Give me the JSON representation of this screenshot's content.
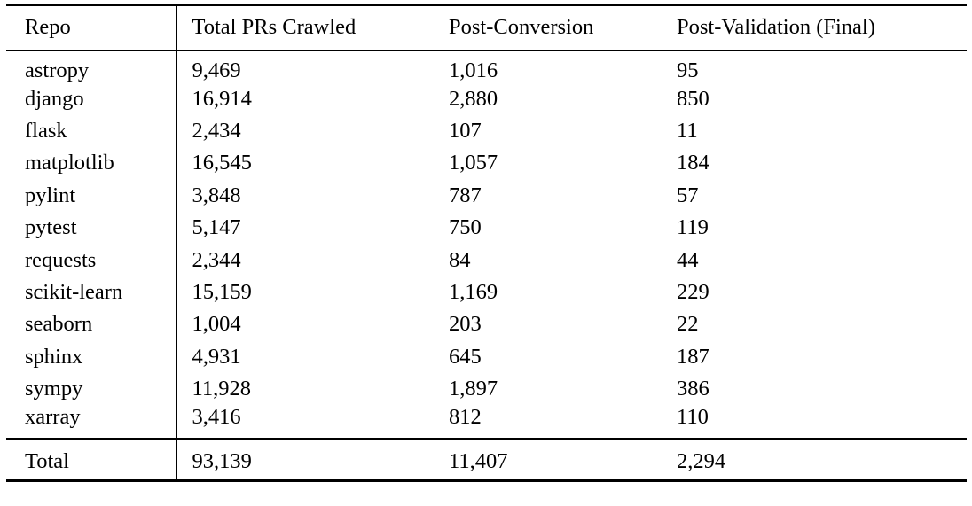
{
  "page": {
    "background_color": "#ffffff",
    "text_color": "#000000",
    "rule_color": "#000000"
  },
  "table": {
    "columns": [
      {
        "label": "Repo"
      },
      {
        "label": "Total PRs Crawled"
      },
      {
        "label": "Post-Conversion"
      },
      {
        "label": "Post-Validation (Final)"
      }
    ],
    "rows": [
      {
        "repo": "astropy",
        "total_prs_crawled": "9,469",
        "post_conversion": "1,016",
        "post_validation_final": "95"
      },
      {
        "repo": "django",
        "total_prs_crawled": "16,914",
        "post_conversion": "2,880",
        "post_validation_final": "850"
      },
      {
        "repo": "flask",
        "total_prs_crawled": "2,434",
        "post_conversion": "107",
        "post_validation_final": "11"
      },
      {
        "repo": "matplotlib",
        "total_prs_crawled": "16,545",
        "post_conversion": "1,057",
        "post_validation_final": "184"
      },
      {
        "repo": "pylint",
        "total_prs_crawled": "3,848",
        "post_conversion": "787",
        "post_validation_final": "57"
      },
      {
        "repo": "pytest",
        "total_prs_crawled": "5,147",
        "post_conversion": "750",
        "post_validation_final": "119"
      },
      {
        "repo": "requests",
        "total_prs_crawled": "2,344",
        "post_conversion": "84",
        "post_validation_final": "44"
      },
      {
        "repo": "scikit-learn",
        "total_prs_crawled": "15,159",
        "post_conversion": "1,169",
        "post_validation_final": "229"
      },
      {
        "repo": "seaborn",
        "total_prs_crawled": "1,004",
        "post_conversion": "203",
        "post_validation_final": "22"
      },
      {
        "repo": "sphinx",
        "total_prs_crawled": "4,931",
        "post_conversion": "645",
        "post_validation_final": "187"
      },
      {
        "repo": "sympy",
        "total_prs_crawled": "11,928",
        "post_conversion": "1,897",
        "post_validation_final": "386"
      },
      {
        "repo": "xarray",
        "total_prs_crawled": "3,416",
        "post_conversion": "812",
        "post_validation_final": "110"
      }
    ],
    "total_row": {
      "repo": "Total",
      "total_prs_crawled": "93,139",
      "post_conversion": "11,407",
      "post_validation_final": "2,294"
    }
  },
  "chart_data": {
    "type": "table",
    "columns": [
      "Repo",
      "Total PRs Crawled",
      "Post-Conversion",
      "Post-Validation (Final)"
    ],
    "rows": [
      [
        "astropy",
        9469,
        1016,
        95
      ],
      [
        "django",
        16914,
        2880,
        850
      ],
      [
        "flask",
        2434,
        107,
        11
      ],
      [
        "matplotlib",
        16545,
        1057,
        184
      ],
      [
        "pylint",
        3848,
        787,
        57
      ],
      [
        "pytest",
        5147,
        750,
        119
      ],
      [
        "requests",
        2344,
        84,
        44
      ],
      [
        "scikit-learn",
        15159,
        1169,
        229
      ],
      [
        "seaborn",
        1004,
        203,
        22
      ],
      [
        "sphinx",
        4931,
        645,
        187
      ],
      [
        "sympy",
        11928,
        1897,
        386
      ],
      [
        "xarray",
        3416,
        812,
        110
      ]
    ],
    "total": [
      "Total",
      93139,
      11407,
      2294
    ]
  }
}
